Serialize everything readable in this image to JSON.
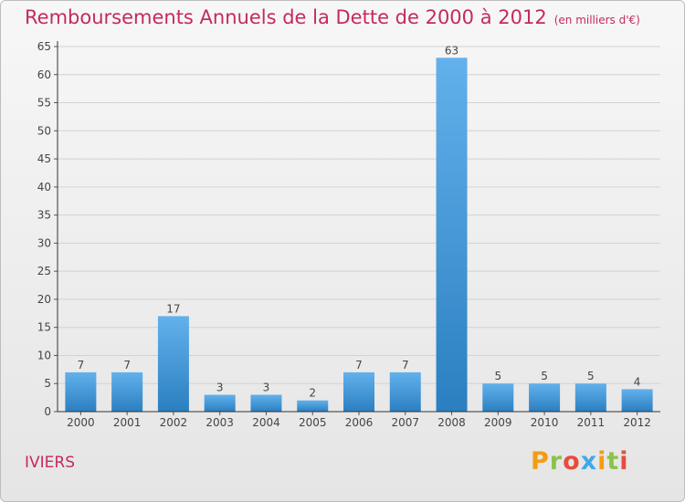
{
  "title": "Remboursements Annuels de la Dette de 2000 à 2012",
  "unit": "(en milliers d'€)",
  "city": "IVIERS",
  "logo": [
    "P",
    "r",
    "o",
    "x",
    "i",
    "t",
    "i"
  ],
  "colors": {
    "title": "#c42a5e",
    "bar_light": "#62b1ec",
    "bar_dark": "#2b7fc0",
    "grid": "#d2d2d2",
    "axis": "#333333"
  },
  "chart_data": {
    "type": "bar",
    "title": "Remboursements Annuels de la Dette de 2000 à 2012",
    "xlabel": "",
    "ylabel": "",
    "categories": [
      "2000",
      "2001",
      "2002",
      "2003",
      "2004",
      "2005",
      "2006",
      "2007",
      "2008",
      "2009",
      "2010",
      "2011",
      "2012"
    ],
    "values": [
      7,
      7,
      17,
      3,
      3,
      2,
      7,
      7,
      63,
      5,
      5,
      5,
      4
    ],
    "ylim": [
      0,
      65
    ],
    "yticks": [
      0,
      5,
      10,
      15,
      20,
      25,
      30,
      35,
      40,
      45,
      50,
      55,
      60,
      65
    ],
    "grid": true
  }
}
